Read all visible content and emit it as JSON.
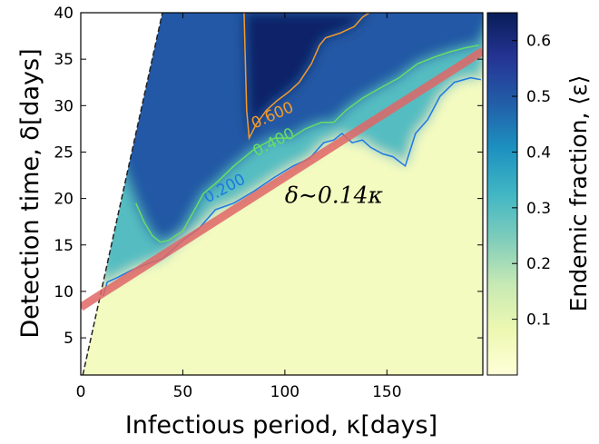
{
  "chart_data": {
    "type": "heatmap",
    "xlabel": "Infectious period, κ[days]",
    "ylabel": "Detection time, δ[days]",
    "colorbar_label": "Endemic fraction, ⟨ε⟩",
    "xlim": [
      0,
      197
    ],
    "ylim": [
      1,
      40
    ],
    "x_ticks": [
      0,
      50,
      100,
      150
    ],
    "y_ticks": [
      5,
      10,
      15,
      20,
      25,
      30,
      35,
      40
    ],
    "colorbar_range": [
      0,
      0.65
    ],
    "colorbar_ticks": [
      "0.1",
      "0.2",
      "0.3",
      "0.4",
      "0.5",
      "0.6"
    ],
    "colormap": [
      "#ffffd9",
      "#edf8b1",
      "#c7e9b4",
      "#7fcdbb",
      "#41b6c4",
      "#1d91c0",
      "#225ea8",
      "#253494",
      "#081d58"
    ],
    "undefined_region": "δ > κ (blank, upper-left)",
    "fit_line": {
      "label": "δ∼0.14κ",
      "intercept": 8.3,
      "slope": 0.14,
      "color": "#e06666"
    },
    "contours": [
      {
        "level": 0.2,
        "label": "0.200",
        "color": "#1f77e4",
        "points": [
          [
            11,
            9.5
          ],
          [
            13,
            11
          ],
          [
            18,
            11.5
          ],
          [
            25,
            12.3
          ],
          [
            33,
            13
          ],
          [
            40,
            13.5
          ],
          [
            50,
            15.5
          ],
          [
            58,
            16.8
          ],
          [
            66,
            18.8
          ],
          [
            75,
            19.5
          ],
          [
            85,
            20.8
          ],
          [
            95,
            22.3
          ],
          [
            104,
            23.5
          ],
          [
            112,
            24.3
          ],
          [
            119,
            26
          ],
          [
            124,
            26.3
          ],
          [
            128,
            27
          ],
          [
            133,
            26
          ],
          [
            138,
            26.3
          ],
          [
            142,
            25.5
          ],
          [
            148,
            24.8
          ],
          [
            153,
            24.5
          ],
          [
            159,
            23.5
          ],
          [
            164,
            27
          ],
          [
            170,
            28.5
          ],
          [
            176,
            31
          ],
          [
            183,
            32.5
          ],
          [
            191,
            33
          ],
          [
            196,
            32.8
          ]
        ]
      },
      {
        "level": 0.4,
        "label": "0.400",
        "color": "#66dd66",
        "points": [
          [
            27,
            19.5
          ],
          [
            31,
            17.5
          ],
          [
            35,
            16
          ],
          [
            39,
            15.3
          ],
          [
            43,
            15.5
          ],
          [
            50,
            16.5
          ],
          [
            55,
            18.5
          ],
          [
            60,
            20.5
          ],
          [
            67,
            21.8
          ],
          [
            75,
            23.5
          ],
          [
            85,
            25.3
          ],
          [
            95,
            26.5
          ],
          [
            103,
            26.5
          ],
          [
            110,
            27.5
          ],
          [
            118,
            28.2
          ],
          [
            124,
            28.2
          ],
          [
            130,
            29.5
          ],
          [
            138,
            30.8
          ],
          [
            146,
            31.8
          ],
          [
            156,
            33
          ],
          [
            165,
            34.5
          ],
          [
            173,
            35.2
          ],
          [
            181,
            35.8
          ],
          [
            188,
            36.2
          ],
          [
            195,
            36.5
          ]
        ]
      },
      {
        "level": 0.6,
        "label": "0.600",
        "color": "#f39a2a",
        "points": [
          [
            80,
            40.1
          ],
          [
            80.5,
            36
          ],
          [
            81,
            32
          ],
          [
            81.3,
            29.5
          ],
          [
            82.5,
            26.5
          ],
          [
            86,
            28
          ],
          [
            91,
            29.5
          ],
          [
            96,
            30.5
          ],
          [
            102,
            31.5
          ],
          [
            107,
            32.5
          ],
          [
            113,
            34.5
          ],
          [
            117,
            36.5
          ],
          [
            120,
            37.3
          ],
          [
            127,
            37.8
          ],
          [
            134,
            38.5
          ],
          [
            138,
            39.5
          ],
          [
            142,
            40.1
          ]
        ]
      }
    ],
    "annotations": [
      {
        "text": "δ∼0.14κ",
        "x": 100,
        "y": 19.5
      }
    ]
  }
}
